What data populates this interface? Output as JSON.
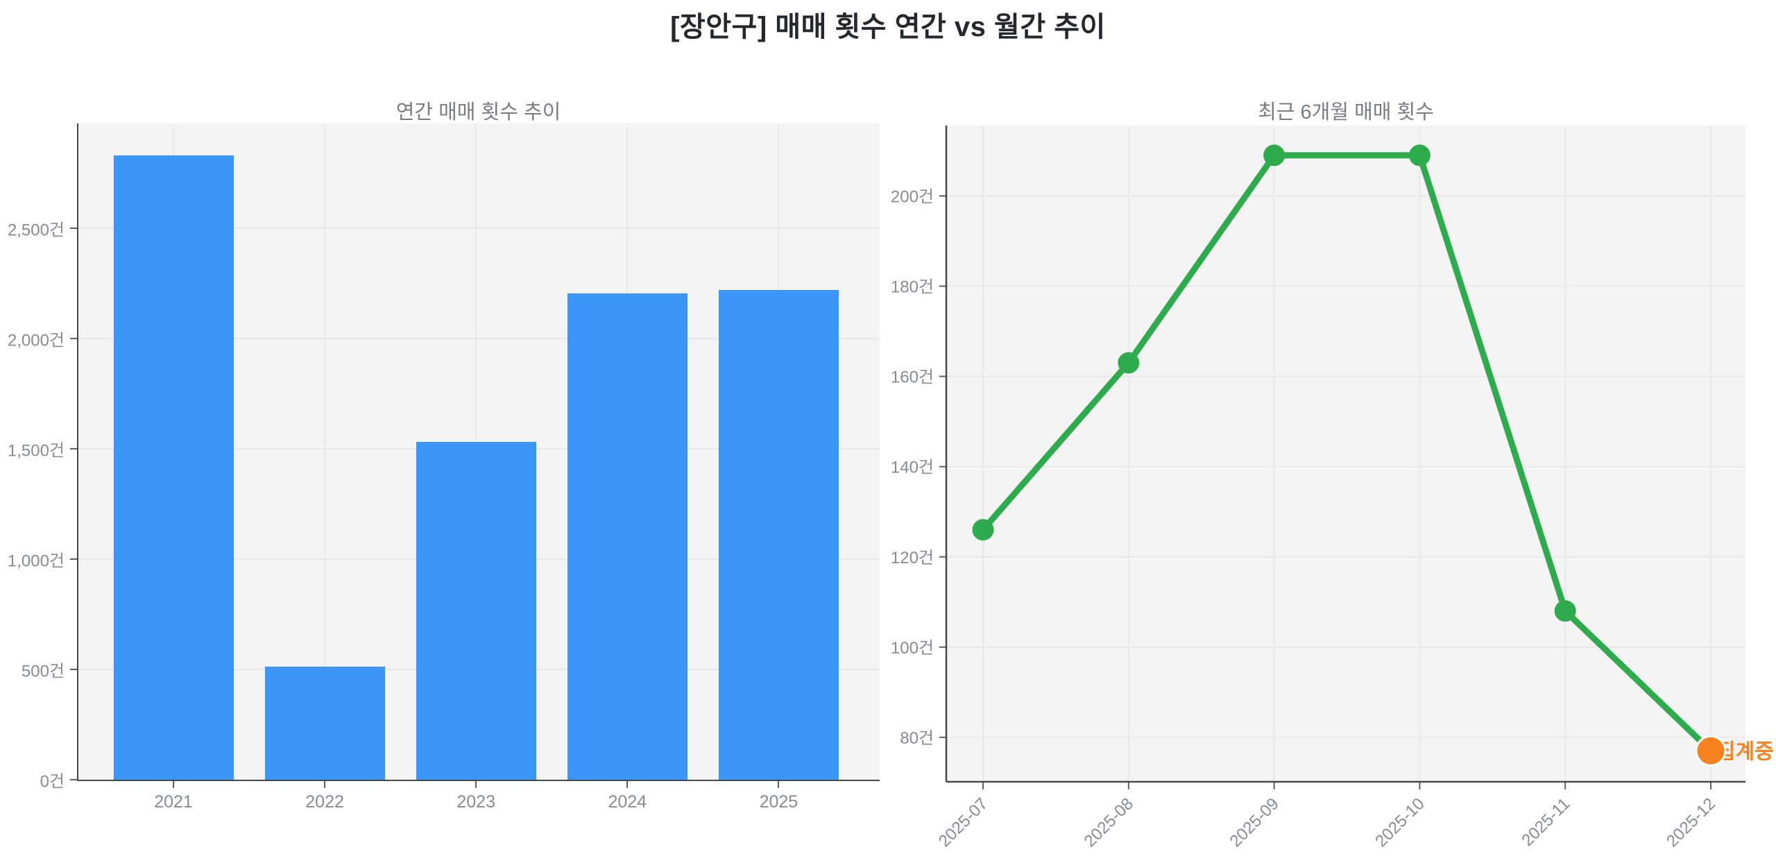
{
  "page": {
    "title": "[장안구] 매매 횟수 연간 vs 월간 추이"
  },
  "colors": {
    "background": "#ffffff",
    "plot_background": "#f4f4f4",
    "gridline": "#e8e8e8",
    "spine": "#43484d",
    "title_text": "#23272e",
    "subtitle_text": "#767d87",
    "tick_text": "#858c96",
    "bar_blue": "#3b96f7",
    "line_green": "#2eac4d",
    "accent_orange": "#f8821e"
  },
  "chart_data": [
    {
      "type": "bar",
      "title": "연간 매매 횟수 추이",
      "categories": [
        "2021",
        "2022",
        "2023",
        "2024",
        "2025"
      ],
      "values": [
        2831,
        512,
        1531,
        2205,
        2219
      ],
      "unit": "건",
      "ytick_values": [
        0,
        500,
        1000,
        1500,
        2000,
        2500
      ],
      "ytick_labels": [
        "0건",
        "500건",
        "1,000건",
        "1,500건",
        "2,000건",
        "2,500건"
      ],
      "ylim": [
        0,
        2975
      ],
      "xlabel": "",
      "ylabel": "",
      "grid": "on",
      "legend": "none",
      "bar_color": "#3b96f7"
    },
    {
      "type": "line",
      "title": "최근 6개월 매매 횟수",
      "x": [
        "2025-07",
        "2025-08",
        "2025-09",
        "2025-10",
        "2025-11",
        "2025-12"
      ],
      "values": [
        126,
        163,
        209,
        209,
        108,
        77
      ],
      "unit": "건",
      "ytick_values": [
        80,
        100,
        120,
        140,
        160,
        180,
        200
      ],
      "ytick_labels": [
        "80건",
        "100건",
        "120건",
        "140건",
        "160건",
        "180건",
        "200건"
      ],
      "ylim": [
        70.3,
        215.6
      ],
      "xlabel": "",
      "ylabel": "",
      "grid": "on",
      "legend": "none",
      "line_color": "#2eac4d",
      "point_color": "#2eac4d",
      "last_point_color": "#f8821e",
      "annotation": {
        "text": "집계중",
        "color": "#f8821e"
      }
    }
  ]
}
